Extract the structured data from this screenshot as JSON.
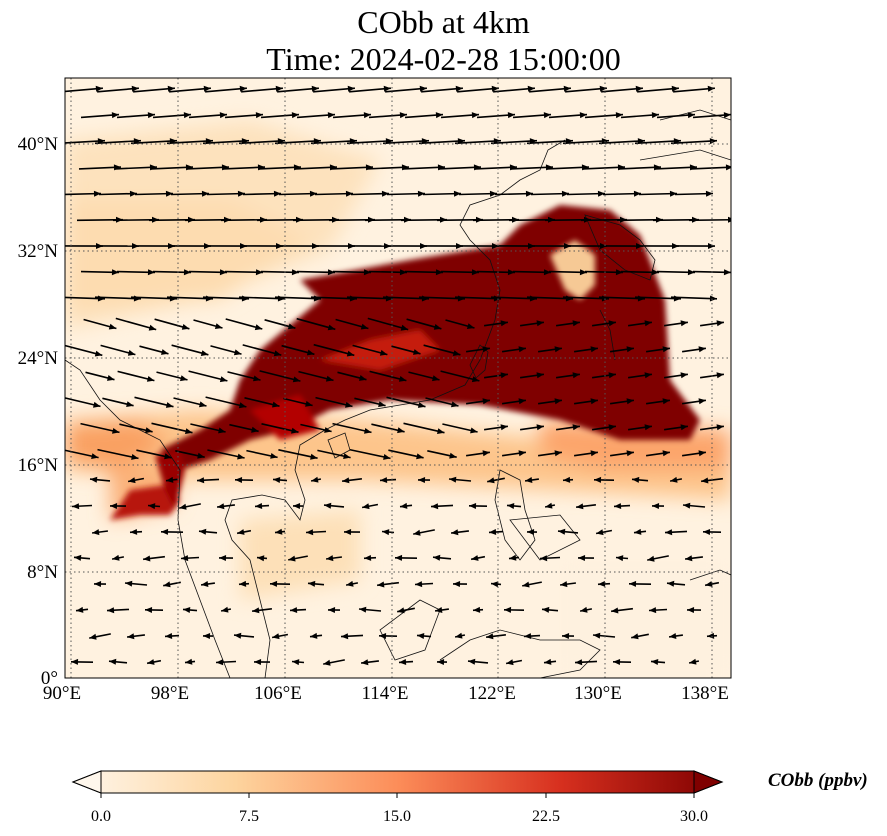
{
  "title": {
    "line1": "CObb at 4km",
    "line2": "Time: 2024-02-28 15:00:00"
  },
  "map": {
    "variable": "CObb",
    "height": "4km",
    "lon_range": [
      89.5,
      139.3
    ],
    "lat_range": [
      0,
      45
    ],
    "gridlines": "dotted",
    "lon_ticks": [
      "90°E",
      "98°E",
      "106°E",
      "114°E",
      "122°E",
      "130°E",
      "138°E"
    ],
    "lat_ticks": [
      "0°",
      "8°N",
      "16°N",
      "24°N",
      "32°N",
      "40°N"
    ],
    "overlay": "wind vectors (arrows)"
  },
  "colorbar": {
    "label": "CObb (ppbv)",
    "min": 0.0,
    "max": 30.0,
    "ticks": [
      "0.0",
      "7.5",
      "15.0",
      "22.5",
      "30.0"
    ],
    "extend": "both",
    "colormap": "OrRd",
    "colors": [
      "#fff7ec",
      "#fdd49e",
      "#fc8d59",
      "#d7301f",
      "#7f0000"
    ]
  }
}
